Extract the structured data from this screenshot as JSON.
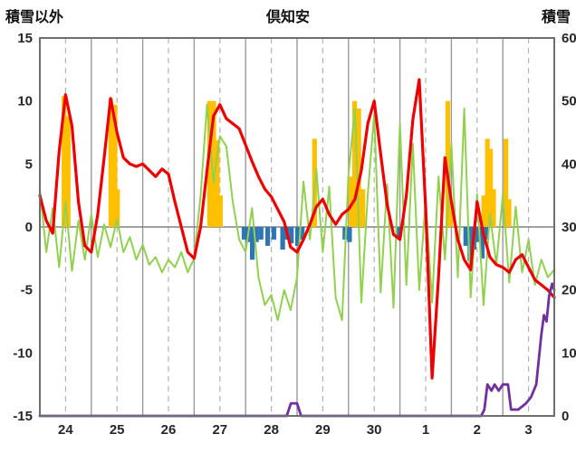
{
  "chart_data": {
    "type": "line",
    "title": "倶知安",
    "left_axis": {
      "label": "積雪以外",
      "min": -15,
      "max": 15,
      "ticks": [
        15,
        10,
        5,
        0,
        -5,
        -10,
        -15
      ]
    },
    "right_axis": {
      "label": "積雪",
      "min": 0,
      "max": 60,
      "ticks": [
        60,
        50,
        40,
        30,
        20,
        10,
        0
      ]
    },
    "x_axis": {
      "labels": [
        "24",
        "25",
        "26",
        "27",
        "28",
        "29",
        "30",
        "1",
        "2",
        "3"
      ],
      "days": 10
    },
    "grid": {
      "solid_every_day": true,
      "dashed_at_noon": true
    },
    "legend": "none",
    "series": [
      {
        "id": "orange-bars",
        "type": "bar",
        "axis": "left",
        "color": "#FFC000",
        "points": [
          [
            0.47,
            10.4
          ],
          [
            0.55,
            8.8
          ],
          [
            1.38,
            10.2
          ],
          [
            1.46,
            9.7
          ],
          [
            1.51,
            3
          ],
          [
            3.3,
            10
          ],
          [
            3.38,
            10
          ],
          [
            3.45,
            6.9
          ],
          [
            3.51,
            2.5
          ],
          [
            5.34,
            7
          ],
          [
            6.05,
            4
          ],
          [
            6.12,
            10
          ],
          [
            6.2,
            9.4
          ],
          [
            6.28,
            3
          ],
          [
            7.93,
            10
          ],
          [
            7.99,
            2
          ],
          [
            8.63,
            2.5
          ],
          [
            8.7,
            7
          ],
          [
            8.76,
            6.2
          ],
          [
            8.82,
            3
          ],
          [
            9.06,
            7
          ],
          [
            9.12,
            2.2
          ]
        ]
      },
      {
        "id": "blue-bars",
        "type": "bar",
        "axis": "left",
        "color": "#2E75B6",
        "points": [
          [
            3.97,
            -1
          ],
          [
            4.05,
            -1.2
          ],
          [
            4.13,
            -2.6
          ],
          [
            4.21,
            -1.2
          ],
          [
            4.3,
            -1
          ],
          [
            4.43,
            -1.5
          ],
          [
            4.55,
            -1
          ],
          [
            4.72,
            -1.8
          ],
          [
            4.8,
            -1
          ],
          [
            4.89,
            -1.3
          ],
          [
            5.01,
            -1.5
          ],
          [
            5.1,
            -1
          ],
          [
            5.93,
            -1
          ],
          [
            6.02,
            -1.2
          ],
          [
            6.98,
            -0.8
          ],
          [
            8.28,
            -1.5
          ],
          [
            8.36,
            -2.7
          ],
          [
            8.44,
            -1.8
          ],
          [
            8.52,
            -1.2
          ],
          [
            8.6,
            -2.5
          ],
          [
            8.68,
            -1
          ]
        ]
      },
      {
        "id": "green-line",
        "type": "line",
        "axis": "left",
        "color": "#92D050",
        "stroke_width": 2,
        "start": 0,
        "step": 0.125,
        "values": [
          3,
          -2,
          1.5,
          -3.2,
          2,
          -3.5,
          0.5,
          -2.6,
          1,
          -2.4,
          0.2,
          -1.6,
          0.6,
          -2,
          -0.8,
          -2.6,
          -1.4,
          -3,
          -2.4,
          -3.6,
          -2.6,
          -3.2,
          -2,
          -3.6,
          -2.5,
          2.5,
          9.7,
          3.5,
          7.2,
          6.4,
          2,
          -1,
          -2,
          1.5,
          -4,
          -6.2,
          -5.4,
          -7.4,
          -5,
          -6.6,
          -4,
          3.6,
          -1,
          4.6,
          -2,
          3.2,
          -5.6,
          -7.4,
          4.2,
          9.4,
          -6,
          2.6,
          9,
          -5.2,
          3.4,
          -6.4,
          8.2,
          -4.6,
          6.6,
          -5,
          2.2,
          -6,
          4,
          -2.6,
          6.6,
          -4,
          9.4,
          -5.6,
          2.6,
          -6.2,
          1,
          -3,
          2.6,
          -4.4,
          1.6,
          -3.6,
          -1,
          -4.6,
          -2.6,
          -4,
          -3.4
        ]
      },
      {
        "id": "red-line",
        "type": "line",
        "axis": "left",
        "color": "#EE0000",
        "stroke_width": 3.2,
        "start": 0,
        "step": 0.125,
        "values": [
          2.5,
          0.5,
          -0.5,
          6,
          10.5,
          8,
          2,
          -1.5,
          -2,
          1,
          5.5,
          10.2,
          7.5,
          5.5,
          5,
          4.8,
          5,
          4.5,
          4,
          4.6,
          4.2,
          2,
          0,
          -2,
          -2.5,
          0,
          4.5,
          8.8,
          9.7,
          8.6,
          8.2,
          7.8,
          6.5,
          5.2,
          4,
          3,
          2.4,
          1.4,
          0.4,
          -1.6,
          -2,
          -1,
          0.2,
          1.6,
          2.2,
          1,
          0.2,
          1,
          1.4,
          2.2,
          4.5,
          8.2,
          10,
          5.8,
          1.8,
          -0.6,
          -1,
          2.5,
          8.5,
          11.7,
          1.5,
          -12,
          -4,
          5.5,
          2,
          -1,
          -2.6,
          -3.4,
          2,
          -0.6,
          -2.4,
          -3,
          -3.2,
          -3.6,
          -2.6,
          -2.2,
          -3.2,
          -4.2,
          -4.6,
          -5,
          -5.6
        ]
      },
      {
        "id": "snow-depth-line",
        "type": "line",
        "axis": "right",
        "color": "#7030A0",
        "stroke_width": 2.8,
        "points": [
          [
            0,
            0
          ],
          [
            4.8,
            0
          ],
          [
            4.88,
            2
          ],
          [
            5,
            2
          ],
          [
            5.08,
            0
          ],
          [
            8.58,
            0
          ],
          [
            8.64,
            1
          ],
          [
            8.7,
            5
          ],
          [
            8.78,
            4
          ],
          [
            8.84,
            5
          ],
          [
            8.92,
            4
          ],
          [
            9,
            5
          ],
          [
            9.1,
            5
          ],
          [
            9.16,
            1
          ],
          [
            9.3,
            1
          ],
          [
            9.45,
            2
          ],
          [
            9.55,
            3
          ],
          [
            9.65,
            5
          ],
          [
            9.75,
            13
          ],
          [
            9.8,
            16
          ],
          [
            9.85,
            15
          ],
          [
            9.9,
            19
          ],
          [
            9.96,
            21
          ],
          [
            10,
            20
          ]
        ]
      }
    ],
    "colors": {
      "grid_solid": "#9a9a9a",
      "grid_dashed": "#b3b3b3",
      "zero_line": "#808080",
      "border": "#6e6e6e",
      "tick_text": "#262626"
    }
  }
}
